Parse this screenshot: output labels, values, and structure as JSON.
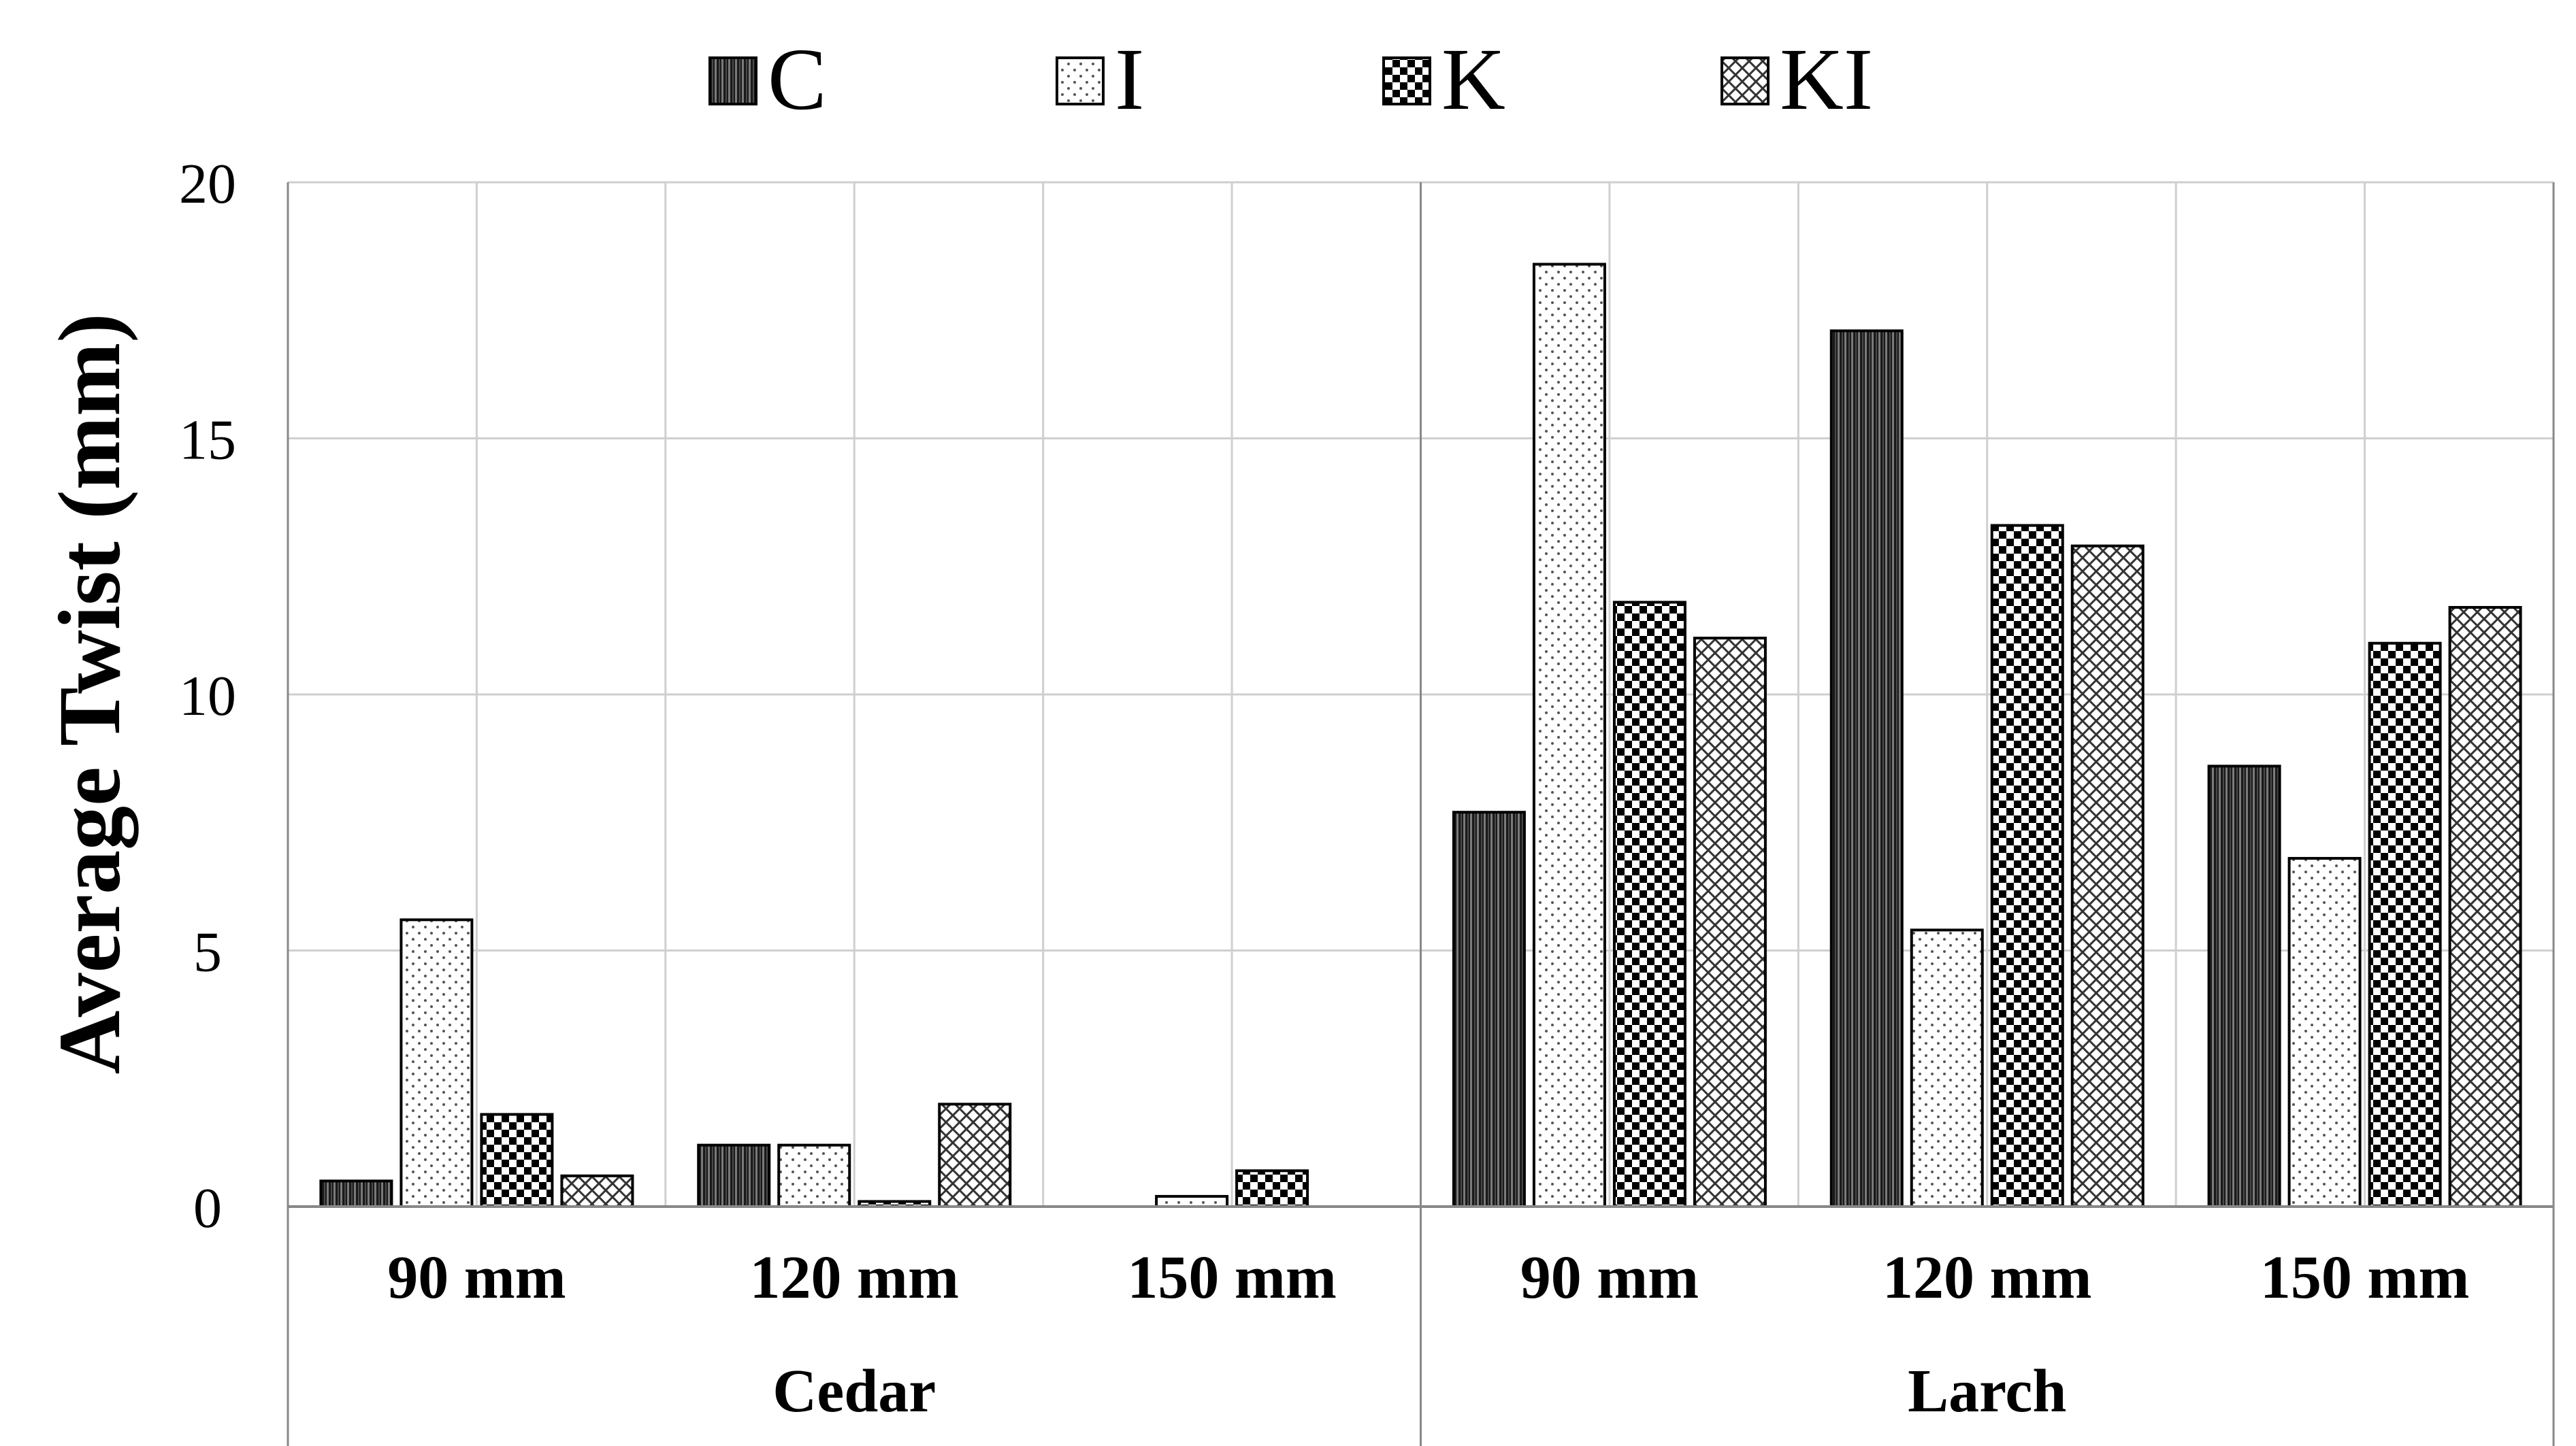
{
  "chart_data": {
    "type": "bar",
    "title": "",
    "xlabel": "",
    "ylabel": "Average Twist (mm)",
    "ylim": [
      0,
      20
    ],
    "yticks": [
      "0",
      "5",
      "10",
      "15",
      "20"
    ],
    "grid": true,
    "legend_position": "top",
    "groups": [
      {
        "label": "Cedar",
        "categories": [
          "90 mm",
          "120 mm",
          "150 mm"
        ]
      },
      {
        "label": "Larch",
        "categories": [
          "90 mm",
          "120 mm",
          "150 mm"
        ]
      }
    ],
    "series": [
      {
        "name": "C",
        "pattern": "dark-vertical-hatch",
        "values": [
          0.5,
          1.2,
          0.0,
          7.7,
          17.1,
          8.6
        ]
      },
      {
        "name": "I",
        "pattern": "light-dots",
        "values": [
          5.6,
          1.2,
          0.2,
          18.4,
          5.4,
          6.8
        ]
      },
      {
        "name": "K",
        "pattern": "checkerboard",
        "values": [
          1.8,
          0.1,
          0.7,
          11.8,
          13.3,
          11.0
        ]
      },
      {
        "name": "KI",
        "pattern": "crosshatch",
        "values": [
          0.6,
          2.0,
          0.0,
          11.1,
          12.9,
          11.7
        ]
      }
    ]
  },
  "colors": {
    "grid": "#cfcfcf",
    "axis": "#888888",
    "bar_stroke": "#000000",
    "background": "#ffffff"
  }
}
